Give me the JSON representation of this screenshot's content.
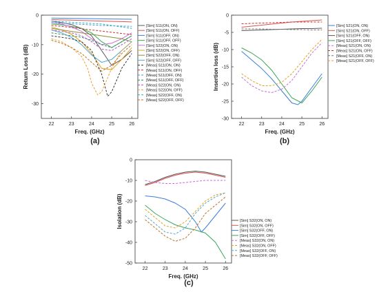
{
  "figure": {
    "panel_labels": [
      "(a)",
      "(b)",
      "(c)"
    ]
  },
  "chart_data": [
    {
      "type": "line",
      "panel": "(a)",
      "xlabel": "Freq. (GHz)",
      "ylabel": "Return Loss (dB)",
      "xlim": [
        21.5,
        26.3
      ],
      "ylim": [
        -35,
        0
      ],
      "xticks": [
        22,
        23,
        24,
        25,
        26
      ],
      "yticks": [
        0,
        -10,
        -20,
        -30
      ],
      "grid": false,
      "legend_position": "right",
      "series": [
        {
          "name": "[Sim] S11(ON, ON)",
          "color": "#5a5a5a",
          "dash": "solid",
          "x": [
            22,
            22.5,
            23,
            23.5,
            24,
            24.5,
            25,
            25.5,
            26
          ],
          "y": [
            -2.0,
            -2.5,
            -3.2,
            -4.5,
            -7,
            -12,
            -17,
            -15,
            -12
          ]
        },
        {
          "name": "[Sim] S11(ON, OFF)",
          "color": "#d9534f",
          "dash": "solid",
          "x": [
            22,
            22.5,
            23,
            23.5,
            24,
            24.5,
            25,
            25.5,
            26
          ],
          "y": [
            -1.5,
            -1.6,
            -1.7,
            -1.8,
            -1.9,
            -2.0,
            -2.1,
            -2.2,
            -2.3
          ]
        },
        {
          "name": "[Sim] S11(OFF, ON)",
          "color": "#3b7dd8",
          "dash": "solid",
          "x": [
            22,
            22.5,
            23,
            23.5,
            24,
            24.5,
            25,
            25.5,
            26
          ],
          "y": [
            -1.0,
            -1.05,
            -1.1,
            -1.15,
            -1.2,
            -1.25,
            -1.3,
            -1.35,
            -1.4
          ]
        },
        {
          "name": "[Sim] S11(OFF, OFF)",
          "color": "#3aa55a",
          "dash": "solid",
          "x": [
            22,
            22.5,
            23,
            23.5,
            24,
            24.5,
            25,
            25.5,
            26
          ],
          "y": [
            -3.0,
            -3.3,
            -3.8,
            -4.5,
            -6,
            -9,
            -11,
            -9,
            -7
          ]
        },
        {
          "name": "[Sim] S22(ON, ON)",
          "color": "#c86dd7",
          "dash": "solid",
          "x": [
            22,
            22.5,
            23,
            23.5,
            24,
            24.5,
            25,
            25.5,
            26
          ],
          "y": [
            -2.5,
            -3,
            -4,
            -5.5,
            -8,
            -10,
            -9.5,
            -8,
            -6
          ]
        },
        {
          "name": "[Sim] S22(ON, OFF)",
          "color": "#e6a020",
          "dash": "solid",
          "x": [
            22,
            22.5,
            23,
            23.5,
            24,
            24.5,
            25,
            25.5,
            26
          ],
          "y": [
            -4,
            -5,
            -6.5,
            -9,
            -13,
            -18,
            -18.5,
            -15,
            -11
          ]
        },
        {
          "name": "[Sim] S22(OFF, ON)",
          "color": "#8c8c3a",
          "dash": "solid",
          "x": [
            22,
            22.5,
            23,
            23.5,
            24,
            24.5,
            25,
            25.5,
            26
          ],
          "y": [
            -4.5,
            -5,
            -5.5,
            -6,
            -6.5,
            -7,
            -7.5,
            -8,
            -9
          ]
        },
        {
          "name": "[Sim] S22(OFF, OFF)",
          "color": "#4ea9c8",
          "dash": "solid",
          "x": [
            22,
            22.5,
            23,
            23.5,
            24,
            24.5,
            25,
            25.5,
            26
          ],
          "y": [
            -5,
            -6,
            -7.5,
            -10,
            -13.5,
            -16,
            -15,
            -12,
            -9
          ]
        },
        {
          "name": "[Meas] S11(ON, ON)",
          "color": "#333333",
          "dash": "dashed",
          "x": [
            22,
            22.5,
            23,
            23.5,
            24,
            24.5,
            24.8,
            25,
            25.5,
            26
          ],
          "y": [
            -7,
            -7.5,
            -8,
            -9,
            -12,
            -20,
            -27.5,
            -26,
            -18,
            -13
          ]
        },
        {
          "name": "[Meas] S11(ON, OFF)",
          "color": "#c9302c",
          "dash": "dashed",
          "x": [
            22,
            22.5,
            23,
            23.5,
            24,
            24.5,
            25,
            25.5,
            26
          ],
          "y": [
            -3.5,
            -3.8,
            -4.2,
            -4.6,
            -5,
            -5.4,
            -5.8,
            -6.2,
            -6.6
          ]
        },
        {
          "name": "[Meas] S11(OFF, ON)",
          "color": "#4a90d9",
          "dash": "dashed",
          "x": [
            22,
            22.5,
            23,
            23.5,
            24,
            24.5,
            25,
            25.5,
            26
          ],
          "y": [
            -2.5,
            -2.7,
            -2.9,
            -3.1,
            -3.3,
            -3.5,
            -3.6,
            -3.7,
            -3.8
          ]
        },
        {
          "name": "[Meas] S11(OFF, OFF)",
          "color": "#2e8b57",
          "dash": "dashed",
          "x": [
            22,
            22.5,
            23,
            23.5,
            24,
            24.5,
            25,
            25.5,
            26
          ],
          "y": [
            -6,
            -6.5,
            -7,
            -7.5,
            -8.5,
            -10,
            -11,
            -9,
            -7
          ]
        },
        {
          "name": "[Meas] S22(ON, ON)",
          "color": "#b04fc0",
          "dash": "dashed",
          "x": [
            22,
            22.5,
            23,
            23.5,
            24,
            24.5,
            25,
            25.5,
            26
          ],
          "y": [
            -5,
            -5.5,
            -6,
            -7,
            -9,
            -11.5,
            -12,
            -10,
            -8
          ]
        },
        {
          "name": "[Meas] S22(ON, OFF)",
          "color": "#f0a030",
          "dash": "dashed",
          "x": [
            22,
            22.5,
            23,
            23.5,
            23.8,
            24,
            24.3,
            24.5,
            25,
            25.5,
            26
          ],
          "y": [
            -8,
            -9,
            -11,
            -14,
            -18,
            -23,
            -27,
            -26,
            -18,
            -12,
            -9
          ]
        },
        {
          "name": "[Meas] S22(OFF, ON)",
          "color": "#24b0c8",
          "dash": "dashed",
          "x": [
            22,
            22.5,
            23,
            23.5,
            24,
            24.5,
            25,
            25.5,
            26
          ],
          "y": [
            -2,
            -2.2,
            -2.4,
            -2.6,
            -2.8,
            -3,
            -3.5,
            -4,
            -4.5
          ]
        },
        {
          "name": "[Meas] S22(OFF, OFF)",
          "color": "#c07020",
          "dash": "dashed",
          "x": [
            22,
            22.5,
            23,
            23.5,
            24,
            24.5,
            25,
            25.5,
            26
          ],
          "y": [
            -8.5,
            -9.5,
            -11,
            -13,
            -16,
            -19,
            -17,
            -13,
            -10
          ]
        }
      ]
    },
    {
      "type": "line",
      "panel": "(b)",
      "xlabel": "Freq. (GHz)",
      "ylabel": "Insertion loss (dB)",
      "xlim": [
        21.5,
        26.3
      ],
      "ylim": [
        -30,
        0
      ],
      "xticks": [
        22,
        23,
        24,
        25,
        26
      ],
      "yticks": [
        0,
        -5,
        -10,
        -15,
        -20,
        -25,
        -30
      ],
      "grid": false,
      "legend_position": "right",
      "series": [
        {
          "name": "[Sim] S21(ON, ON)",
          "color": "#3b7dd8",
          "dash": "solid",
          "x": [
            22,
            22.5,
            23,
            23.5,
            24,
            24.5,
            24.8,
            25,
            25.5,
            26
          ],
          "y": [
            -10.5,
            -13,
            -15.5,
            -18.5,
            -22,
            -25.5,
            -26,
            -25,
            -21,
            -17
          ]
        },
        {
          "name": "[Sim] S21(ON, OFF)",
          "color": "#d9534f",
          "dash": "solid",
          "x": [
            22,
            22.5,
            23,
            23.5,
            24,
            24.5,
            25,
            25.5,
            26
          ],
          "y": [
            -3.5,
            -3.2,
            -2.9,
            -2.6,
            -2.3,
            -2.0,
            -1.8,
            -1.6,
            -1.4
          ]
        },
        {
          "name": "[Sim] S21(OFF, ON)",
          "color": "#555555",
          "dash": "solid",
          "x": [
            22,
            22.5,
            23,
            23.5,
            24,
            24.5,
            25,
            25.5,
            26
          ],
          "y": [
            -4.5,
            -4.4,
            -4.3,
            -4.2,
            -4.1,
            -4.0,
            -3.9,
            -3.9,
            -3.8
          ]
        },
        {
          "name": "[Sim] S21(OFF, OFF)",
          "color": "#3aa55a",
          "dash": "solid",
          "x": [
            22,
            22.5,
            23,
            23.5,
            24,
            24.5,
            25,
            25.5,
            26
          ],
          "y": [
            -9.5,
            -11,
            -13,
            -16,
            -20,
            -24,
            -25.5,
            -22,
            -18
          ]
        },
        {
          "name": "[Meas] S21(ON, ON)",
          "color": "#c86dd7",
          "dash": "dashed",
          "x": [
            22,
            22.5,
            23,
            23.5,
            24,
            24.5,
            25,
            25.5,
            26
          ],
          "y": [
            -18,
            -20.5,
            -22,
            -22.5,
            -21.5,
            -19,
            -15,
            -11,
            -8
          ]
        },
        {
          "name": "[Meas] S21(ON, OFF)",
          "color": "#c9302c",
          "dash": "dashed",
          "x": [
            22,
            22.5,
            23,
            23.5,
            24,
            24.5,
            25,
            25.5,
            26
          ],
          "y": [
            -2.5,
            -2.4,
            -2.3,
            -2.2,
            -2.1,
            -2.0,
            -2.0,
            -2.0,
            -2.0
          ]
        },
        {
          "name": "[Meas] S21(OFF, ON)",
          "color": "#777777",
          "dash": "dashed",
          "x": [
            22,
            22.5,
            23,
            23.5,
            24,
            24.5,
            25,
            25.5,
            26
          ],
          "y": [
            -4,
            -4,
            -4,
            -4.1,
            -4.1,
            -4.2,
            -4.2,
            -4.3,
            -4.3
          ]
        },
        {
          "name": "[Meas] S21(OFF, OFF)",
          "color": "#e6a020",
          "dash": "dashed",
          "x": [
            22,
            22.5,
            23,
            23.5,
            24,
            24.5,
            25,
            25.5,
            26
          ],
          "y": [
            -17,
            -19,
            -20.5,
            -20.5,
            -19.5,
            -17,
            -13.5,
            -10,
            -7
          ]
        }
      ]
    },
    {
      "type": "line",
      "panel": "(c)",
      "xlabel": "Freq. (GHz)",
      "ylabel": "Isolation (dB)",
      "xlim": [
        21.5,
        26.3
      ],
      "ylim": [
        -50,
        0
      ],
      "xticks": [
        22,
        23,
        24,
        25,
        26
      ],
      "yticks": [
        0,
        -10,
        -20,
        -30,
        -40,
        -50
      ],
      "grid": false,
      "legend_position": "right",
      "series": [
        {
          "name": "[Sim] S32(ON, ON)",
          "color": "#555555",
          "dash": "solid",
          "x": [
            22,
            22.5,
            23,
            23.5,
            24,
            24.5,
            25,
            25.5,
            26
          ],
          "y": [
            -12,
            -10.5,
            -8.5,
            -7,
            -6,
            -5.5,
            -6,
            -7,
            -8
          ]
        },
        {
          "name": "[Sim] S32(ON, OFF)",
          "color": "#d9534f",
          "dash": "solid",
          "x": [
            22,
            22.5,
            23,
            23.5,
            24,
            24.5,
            25,
            25.5,
            26
          ],
          "y": [
            -12.5,
            -11,
            -9,
            -7.5,
            -6.5,
            -6,
            -6.5,
            -7.5,
            -8.5
          ]
        },
        {
          "name": "[Sim] S32(OFF, ON)",
          "color": "#3b7dd8",
          "dash": "solid",
          "x": [
            22,
            22.5,
            23,
            23.5,
            24,
            24.5,
            24.8,
            25,
            25.5,
            26
          ],
          "y": [
            -17.5,
            -18,
            -19,
            -21,
            -24,
            -30,
            -35,
            -33,
            -27,
            -21
          ]
        },
        {
          "name": "[Sim] S32(OFF, OFF)",
          "color": "#3aa55a",
          "dash": "solid",
          "x": [
            22,
            22.5,
            23,
            23.5,
            24,
            24.5,
            25,
            25.5,
            26
          ],
          "y": [
            -22,
            -26,
            -29,
            -31.5,
            -33,
            -34,
            -35.5,
            -40,
            -48
          ]
        },
        {
          "name": "[Meas] S32(ON, ON)",
          "color": "#c86dd7",
          "dash": "dashed",
          "x": [
            22,
            22.5,
            23,
            23.5,
            24,
            24.5,
            25,
            25.5,
            26
          ],
          "y": [
            -10,
            -11,
            -11.5,
            -11.5,
            -11,
            -10.5,
            -10,
            -10,
            -10
          ]
        },
        {
          "name": "[Meas] S32(ON, OFF)",
          "color": "#e6a020",
          "dash": "dashed",
          "x": [
            22,
            22.5,
            23,
            23.5,
            24,
            24.5,
            25,
            25.5,
            26
          ],
          "y": [
            -24,
            -28,
            -32,
            -33,
            -30,
            -25,
            -20,
            -17,
            -16
          ]
        },
        {
          "name": "[Meas] S32(OFF, ON)",
          "color": "#4ea9c8",
          "dash": "dashed",
          "x": [
            22,
            22.5,
            23,
            23.5,
            24,
            24.5,
            25,
            25.5,
            26
          ],
          "y": [
            -27,
            -31,
            -35,
            -36,
            -33,
            -26,
            -21,
            -18,
            -16
          ]
        },
        {
          "name": "[Meas] S32(OFF, OFF)",
          "color": "#c07020",
          "dash": "dashed",
          "x": [
            22,
            22.5,
            23,
            23.5,
            24,
            24.5,
            25,
            25.5,
            26
          ],
          "y": [
            -29,
            -33,
            -37,
            -39.5,
            -38,
            -33,
            -26,
            -22,
            -18
          ]
        }
      ]
    }
  ]
}
